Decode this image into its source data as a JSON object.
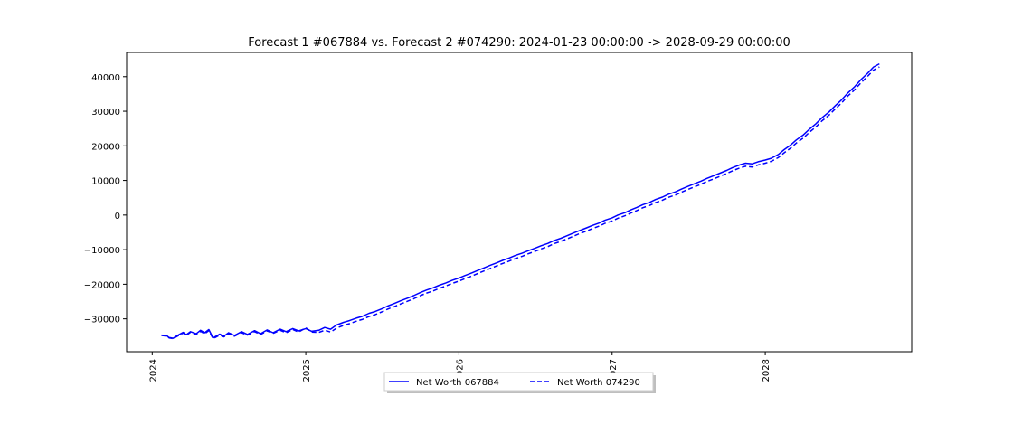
{
  "chart_data": {
    "type": "line",
    "title": "Forecast 1 #067884 vs. Forecast 2 #074290: 2024-01-23 00:00:00 -> 2028-09-29 00:00:00",
    "xlabel": "",
    "ylabel": "",
    "x_range": [
      "2023-11-01",
      "2028-12-15"
    ],
    "ylim": [
      -39500,
      47000
    ],
    "x_ticks": [
      {
        "date": "2024-01-01",
        "label": "2024"
      },
      {
        "date": "2025-01-01",
        "label": "2025"
      },
      {
        "date": "2026-01-01",
        "label": "2026"
      },
      {
        "date": "2027-01-01",
        "label": "2027"
      },
      {
        "date": "2028-01-01",
        "label": "2028"
      }
    ],
    "y_ticks": [
      {
        "value": -30000,
        "label": "−30000"
      },
      {
        "value": -20000,
        "label": "−20000"
      },
      {
        "value": -10000,
        "label": "−10000"
      },
      {
        "value": 0,
        "label": "0"
      },
      {
        "value": 10000,
        "label": "10000"
      },
      {
        "value": 20000,
        "label": "20000"
      },
      {
        "value": 30000,
        "label": "30000"
      },
      {
        "value": 40000,
        "label": "40000"
      }
    ],
    "grid": false,
    "legend_position": "bottom-center",
    "series": [
      {
        "name": "Net Worth 067884",
        "color": "#0000ff",
        "dash": "solid",
        "points": [
          [
            "2024-01-23",
            -34700
          ],
          [
            "2024-02-05",
            -34900
          ],
          [
            "2024-02-10",
            -35400
          ],
          [
            "2024-02-20",
            -35600
          ],
          [
            "2024-03-01",
            -34800
          ],
          [
            "2024-03-15",
            -33900
          ],
          [
            "2024-03-22",
            -34600
          ],
          [
            "2024-04-01",
            -33700
          ],
          [
            "2024-04-15",
            -34300
          ],
          [
            "2024-04-25",
            -33300
          ],
          [
            "2024-05-05",
            -34000
          ],
          [
            "2024-05-15",
            -33100
          ],
          [
            "2024-05-25",
            -35500
          ],
          [
            "2024-06-10",
            -34400
          ],
          [
            "2024-06-20",
            -35000
          ],
          [
            "2024-07-01",
            -34000
          ],
          [
            "2024-07-15",
            -34800
          ],
          [
            "2024-08-01",
            -33700
          ],
          [
            "2024-08-15",
            -34500
          ],
          [
            "2024-09-01",
            -33400
          ],
          [
            "2024-09-15",
            -34300
          ],
          [
            "2024-10-01",
            -33200
          ],
          [
            "2024-10-15",
            -34000
          ],
          [
            "2024-11-01",
            -33000
          ],
          [
            "2024-11-15",
            -33700
          ],
          [
            "2024-12-01",
            -32800
          ],
          [
            "2024-12-15",
            -33500
          ],
          [
            "2025-01-01",
            -32800
          ],
          [
            "2025-01-15",
            -33600
          ],
          [
            "2025-02-01",
            -33300
          ],
          [
            "2025-02-15",
            -32500
          ],
          [
            "2025-03-01",
            -33000
          ],
          [
            "2025-03-15",
            -31800
          ],
          [
            "2025-04-01",
            -31000
          ],
          [
            "2025-04-15",
            -30500
          ],
          [
            "2025-05-01",
            -29800
          ],
          [
            "2025-05-15",
            -29300
          ],
          [
            "2025-06-01",
            -28400
          ],
          [
            "2025-06-15",
            -27900
          ],
          [
            "2025-07-01",
            -27100
          ],
          [
            "2025-07-15",
            -26300
          ],
          [
            "2025-08-01",
            -25500
          ],
          [
            "2025-08-15",
            -24800
          ],
          [
            "2025-09-01",
            -24000
          ],
          [
            "2025-09-15",
            -23300
          ],
          [
            "2025-10-01",
            -22400
          ],
          [
            "2025-10-15",
            -21700
          ],
          [
            "2025-11-01",
            -21000
          ],
          [
            "2025-11-15",
            -20300
          ],
          [
            "2025-12-01",
            -19600
          ],
          [
            "2025-12-15",
            -18900
          ],
          [
            "2026-01-01",
            -18200
          ],
          [
            "2026-01-15",
            -17500
          ],
          [
            "2026-02-01",
            -16700
          ],
          [
            "2026-02-15",
            -16000
          ],
          [
            "2026-03-01",
            -15300
          ],
          [
            "2026-03-15",
            -14600
          ],
          [
            "2026-04-01",
            -13800
          ],
          [
            "2026-04-15",
            -13100
          ],
          [
            "2026-05-01",
            -12400
          ],
          [
            "2026-05-15",
            -11700
          ],
          [
            "2026-06-01",
            -11000
          ],
          [
            "2026-06-15",
            -10300
          ],
          [
            "2026-07-01",
            -9600
          ],
          [
            "2026-07-15",
            -8900
          ],
          [
            "2026-08-01",
            -8200
          ],
          [
            "2026-08-15",
            -7400
          ],
          [
            "2026-09-01",
            -6700
          ],
          [
            "2026-09-15",
            -6000
          ],
          [
            "2026-10-01",
            -5200
          ],
          [
            "2026-10-15",
            -4500
          ],
          [
            "2026-11-01",
            -3700
          ],
          [
            "2026-11-15",
            -3000
          ],
          [
            "2026-12-01",
            -2300
          ],
          [
            "2026-12-15",
            -1500
          ],
          [
            "2027-01-01",
            -800
          ],
          [
            "2027-01-15",
            0
          ],
          [
            "2027-02-01",
            700
          ],
          [
            "2027-02-15",
            1500
          ],
          [
            "2027-03-01",
            2200
          ],
          [
            "2027-03-15",
            3000
          ],
          [
            "2027-04-01",
            3700
          ],
          [
            "2027-04-15",
            4500
          ],
          [
            "2027-05-01",
            5200
          ],
          [
            "2027-05-15",
            6000
          ],
          [
            "2027-06-01",
            6700
          ],
          [
            "2027-06-15",
            7500
          ],
          [
            "2027-07-01",
            8300
          ],
          [
            "2027-07-15",
            9000
          ],
          [
            "2027-08-01",
            9800
          ],
          [
            "2027-08-15",
            10600
          ],
          [
            "2027-09-01",
            11400
          ],
          [
            "2027-09-15",
            12100
          ],
          [
            "2027-10-01",
            12900
          ],
          [
            "2027-10-15",
            13700
          ],
          [
            "2027-11-01",
            14500
          ],
          [
            "2027-11-15",
            15000
          ],
          [
            "2027-12-01",
            14800
          ],
          [
            "2027-12-15",
            15400
          ],
          [
            "2028-01-01",
            15900
          ],
          [
            "2028-01-15",
            16400
          ],
          [
            "2028-02-01",
            17500
          ],
          [
            "2028-02-15",
            18900
          ],
          [
            "2028-03-01",
            20200
          ],
          [
            "2028-03-15",
            21700
          ],
          [
            "2028-04-01",
            23200
          ],
          [
            "2028-04-15",
            24800
          ],
          [
            "2028-05-01",
            26400
          ],
          [
            "2028-05-15",
            28100
          ],
          [
            "2028-06-01",
            29800
          ],
          [
            "2028-06-15",
            31500
          ],
          [
            "2028-07-01",
            33300
          ],
          [
            "2028-07-15",
            35200
          ],
          [
            "2028-08-01",
            37100
          ],
          [
            "2028-08-15",
            39000
          ],
          [
            "2028-09-01",
            41000
          ],
          [
            "2028-09-15",
            42800
          ],
          [
            "2028-09-29",
            43700
          ]
        ]
      },
      {
        "name": "Net Worth 074290",
        "color": "#0000ff",
        "dash": "dashed",
        "points": [
          [
            "2024-01-23",
            -34800
          ],
          [
            "2024-02-05",
            -35000
          ],
          [
            "2024-02-10",
            -35500
          ],
          [
            "2024-02-20",
            -35700
          ],
          [
            "2024-03-01",
            -35000
          ],
          [
            "2024-03-15",
            -34100
          ],
          [
            "2024-03-22",
            -34800
          ],
          [
            "2024-04-01",
            -33900
          ],
          [
            "2024-04-15",
            -34500
          ],
          [
            "2024-04-25",
            -33600
          ],
          [
            "2024-05-05",
            -34300
          ],
          [
            "2024-05-15",
            -33400
          ],
          [
            "2024-05-25",
            -35700
          ],
          [
            "2024-06-10",
            -34700
          ],
          [
            "2024-06-20",
            -35200
          ],
          [
            "2024-07-01",
            -34300
          ],
          [
            "2024-07-15",
            -35000
          ],
          [
            "2024-08-01",
            -34000
          ],
          [
            "2024-08-15",
            -34700
          ],
          [
            "2024-09-01",
            -33700
          ],
          [
            "2024-09-15",
            -34500
          ],
          [
            "2024-10-01",
            -33500
          ],
          [
            "2024-10-15",
            -34200
          ],
          [
            "2024-11-01",
            -33300
          ],
          [
            "2024-11-15",
            -34000
          ],
          [
            "2024-12-01",
            -33100
          ],
          [
            "2024-12-15",
            -33800
          ],
          [
            "2025-01-01",
            -32600
          ],
          [
            "2025-01-15",
            -33800
          ],
          [
            "2025-02-01",
            -33900
          ],
          [
            "2025-02-15",
            -33300
          ],
          [
            "2025-03-01",
            -33800
          ],
          [
            "2025-03-15",
            -32700
          ],
          [
            "2025-04-01",
            -31900
          ],
          [
            "2025-04-15",
            -31400
          ],
          [
            "2025-05-01",
            -30700
          ],
          [
            "2025-05-15",
            -30200
          ],
          [
            "2025-06-01",
            -29300
          ],
          [
            "2025-06-15",
            -28800
          ],
          [
            "2025-07-01",
            -28000
          ],
          [
            "2025-07-15",
            -27200
          ],
          [
            "2025-08-01",
            -26400
          ],
          [
            "2025-08-15",
            -25700
          ],
          [
            "2025-09-01",
            -24900
          ],
          [
            "2025-09-15",
            -24200
          ],
          [
            "2025-10-01",
            -23300
          ],
          [
            "2025-10-15",
            -22600
          ],
          [
            "2025-11-01",
            -21900
          ],
          [
            "2025-11-15",
            -21200
          ],
          [
            "2025-12-01",
            -20500
          ],
          [
            "2025-12-15",
            -19800
          ],
          [
            "2026-01-01",
            -19100
          ],
          [
            "2026-01-15",
            -18400
          ],
          [
            "2026-02-01",
            -17600
          ],
          [
            "2026-02-15",
            -16900
          ],
          [
            "2026-03-01",
            -16200
          ],
          [
            "2026-03-15",
            -15500
          ],
          [
            "2026-04-01",
            -14700
          ],
          [
            "2026-04-15",
            -14000
          ],
          [
            "2026-05-01",
            -13300
          ],
          [
            "2026-05-15",
            -12600
          ],
          [
            "2026-06-01",
            -11900
          ],
          [
            "2026-06-15",
            -11200
          ],
          [
            "2026-07-01",
            -10500
          ],
          [
            "2026-07-15",
            -9800
          ],
          [
            "2026-08-01",
            -9100
          ],
          [
            "2026-08-15",
            -8300
          ],
          [
            "2026-09-01",
            -7600
          ],
          [
            "2026-09-15",
            -6900
          ],
          [
            "2026-10-01",
            -6100
          ],
          [
            "2026-10-15",
            -5400
          ],
          [
            "2026-11-01",
            -4600
          ],
          [
            "2026-11-15",
            -3900
          ],
          [
            "2026-12-01",
            -3200
          ],
          [
            "2026-12-15",
            -2400
          ],
          [
            "2027-01-01",
            -1700
          ],
          [
            "2027-01-15",
            -900
          ],
          [
            "2027-02-01",
            -200
          ],
          [
            "2027-02-15",
            600
          ],
          [
            "2027-03-01",
            1300
          ],
          [
            "2027-03-15",
            2100
          ],
          [
            "2027-04-01",
            2800
          ],
          [
            "2027-04-15",
            3600
          ],
          [
            "2027-05-01",
            4300
          ],
          [
            "2027-05-15",
            5100
          ],
          [
            "2027-06-01",
            5800
          ],
          [
            "2027-06-15",
            6600
          ],
          [
            "2027-07-01",
            7400
          ],
          [
            "2027-07-15",
            8100
          ],
          [
            "2027-08-01",
            8900
          ],
          [
            "2027-08-15",
            9700
          ],
          [
            "2027-09-01",
            10500
          ],
          [
            "2027-09-15",
            11200
          ],
          [
            "2027-10-01",
            12000
          ],
          [
            "2027-10-15",
            12800
          ],
          [
            "2027-11-01",
            13600
          ],
          [
            "2027-11-15",
            14100
          ],
          [
            "2027-12-01",
            13900
          ],
          [
            "2027-12-15",
            14500
          ],
          [
            "2028-01-01",
            15000
          ],
          [
            "2028-01-15",
            15500
          ],
          [
            "2028-02-01",
            16600
          ],
          [
            "2028-02-15",
            18000
          ],
          [
            "2028-03-01",
            19300
          ],
          [
            "2028-03-15",
            20800
          ],
          [
            "2028-04-01",
            22300
          ],
          [
            "2028-04-15",
            23900
          ],
          [
            "2028-05-01",
            25500
          ],
          [
            "2028-05-15",
            27200
          ],
          [
            "2028-06-01",
            28900
          ],
          [
            "2028-06-15",
            30600
          ],
          [
            "2028-07-01",
            32400
          ],
          [
            "2028-07-15",
            34300
          ],
          [
            "2028-08-01",
            36200
          ],
          [
            "2028-08-15",
            38100
          ],
          [
            "2028-09-01",
            40100
          ],
          [
            "2028-09-15",
            41900
          ],
          [
            "2028-09-29",
            42800
          ]
        ]
      }
    ]
  }
}
